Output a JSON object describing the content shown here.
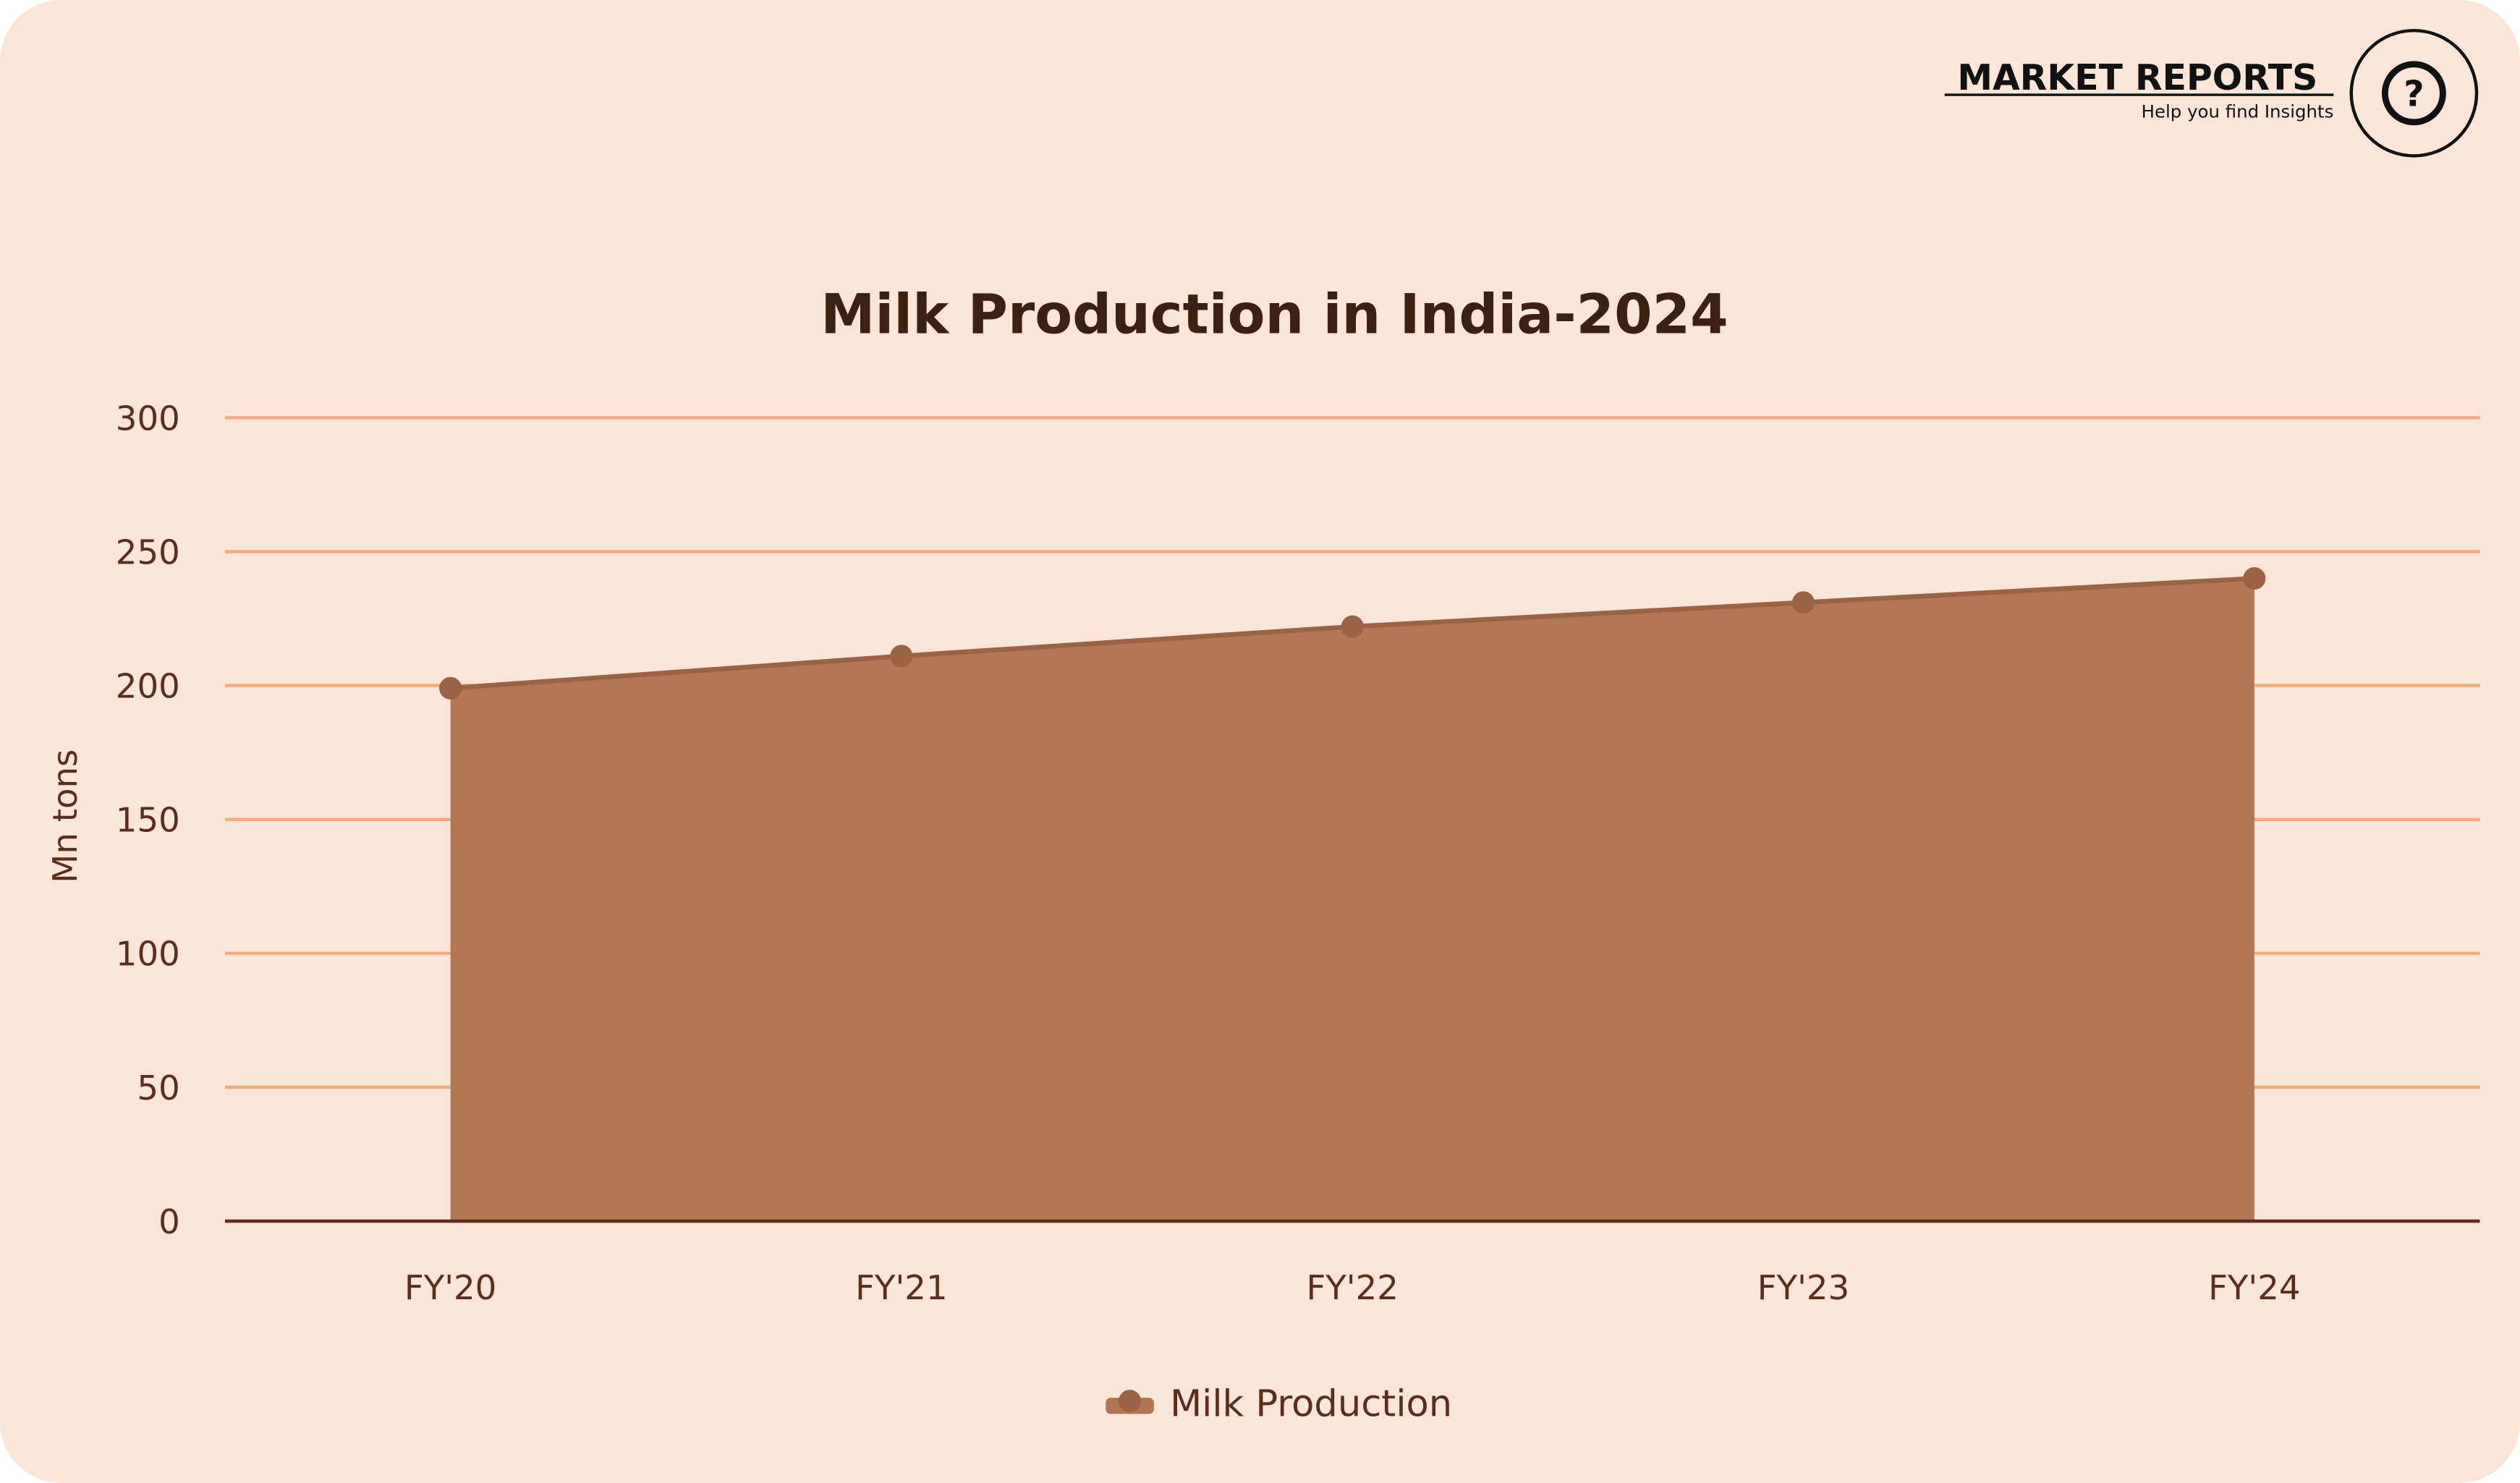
{
  "logo": {
    "name": "MARKET REPORTS",
    "tagline": "Help you find Insights",
    "icon": "?"
  },
  "chart_data": {
    "type": "area",
    "title": "Milk Production in India-2024",
    "y_label": "Mn tons",
    "categories": [
      "FY'20",
      "FY'21",
      "FY'22",
      "FY'23",
      "FY'24"
    ],
    "series": [
      {
        "name": "Milk Production",
        "color": "#b07552",
        "values": [
          199,
          211,
          222,
          231,
          240
        ]
      }
    ],
    "ylim": [
      0,
      300
    ],
    "yticks": [
      0,
      50,
      100,
      150,
      200,
      250,
      300
    ],
    "grid": true,
    "grid_color": "#f5a97c"
  }
}
